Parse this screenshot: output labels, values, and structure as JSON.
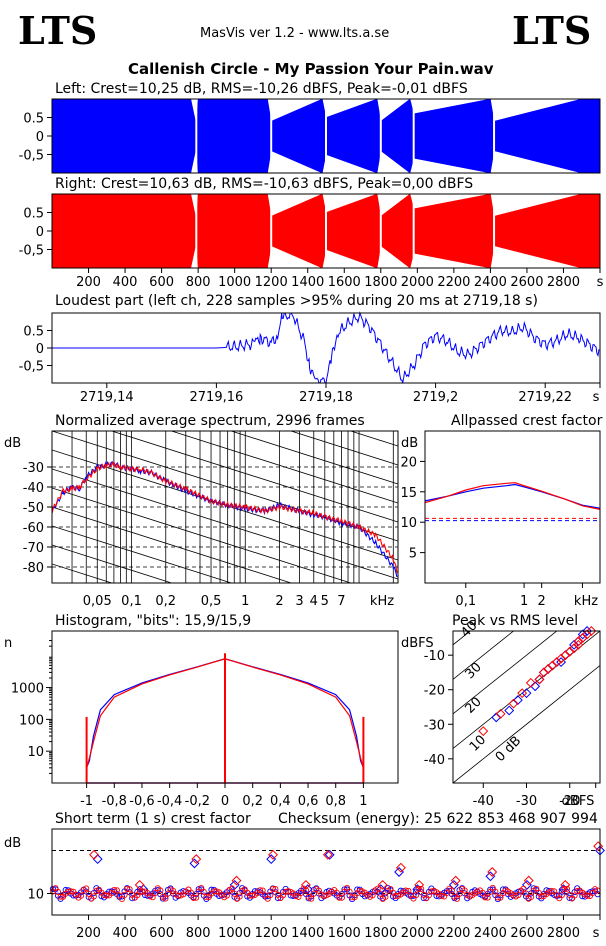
{
  "header": {
    "logo_left": "LTS",
    "logo_right": "LTS",
    "version": "MasVis ver 1.2 - www.lts.a.se",
    "file_title": "Callenish Circle - My Passion  Your Pain.wav"
  },
  "colors": {
    "left": "#0000ff",
    "right": "#ff0000",
    "grid": "#000000"
  },
  "chart_data": [
    {
      "id": "left-waveform",
      "type": "area",
      "title": "Left: Crest=10,25 dB, RMS=-10,26 dBFS, Peak=-0,01 dBFS",
      "ylim": [
        -1,
        1
      ],
      "yticks": [
        "0.5",
        "0",
        "-0,5"
      ],
      "ytick_values": [
        0.5,
        0,
        -0.5
      ],
      "xlim": [
        0,
        3000
      ],
      "series": [
        {
          "name": "Left",
          "color": "#0000ff",
          "x": [
            0,
            760,
            790,
            800,
            1000,
            1180,
            1200,
            1480,
            1500,
            1780,
            1800,
            1960,
            1980,
            2400,
            2420,
            2900,
            3000
          ],
          "min": [
            -1.0,
            -1.0,
            -0.3,
            -1.0,
            -1.0,
            -1.0,
            -0.4,
            -1.0,
            -0.5,
            -1.0,
            -0.4,
            -1.0,
            -0.6,
            -1.0,
            -0.4,
            -1.0,
            -1.0
          ],
          "max": [
            1.0,
            1.0,
            0.3,
            1.0,
            1.0,
            1.0,
            0.4,
            1.0,
            0.5,
            1.0,
            0.4,
            1.0,
            0.6,
            1.0,
            0.4,
            1.0,
            1.0
          ]
        }
      ]
    },
    {
      "id": "right-waveform",
      "type": "area",
      "title": "Right: Crest=10,63 dB, RMS=-10,63 dBFS, Peak=0,00 dBFS",
      "ylim": [
        -1,
        1
      ],
      "yticks": [
        "0.5",
        "0",
        "-0,5"
      ],
      "ytick_values": [
        0.5,
        0,
        -0.5
      ],
      "xlim": [
        0,
        3000
      ],
      "xticks": [
        "200",
        "400",
        "600",
        "800",
        "1000",
        "1200",
        "1400",
        "1600",
        "1800",
        "2000",
        "2200",
        "2400",
        "2600",
        "2800",
        "s"
      ],
      "xtick_values": [
        200,
        400,
        600,
        800,
        1000,
        1200,
        1400,
        1600,
        1800,
        2000,
        2200,
        2400,
        2600,
        2800,
        3000
      ],
      "series": [
        {
          "name": "Right",
          "color": "#ff0000",
          "x": [
            0,
            760,
            790,
            800,
            1000,
            1180,
            1200,
            1480,
            1500,
            1780,
            1800,
            1960,
            1980,
            2400,
            2420,
            2900,
            3000
          ],
          "min": [
            -1.0,
            -1.0,
            -0.3,
            -1.0,
            -1.0,
            -1.0,
            -0.4,
            -1.0,
            -0.5,
            -1.0,
            -0.4,
            -1.0,
            -0.6,
            -1.0,
            -0.4,
            -1.0,
            -1.0
          ],
          "max": [
            1.0,
            1.0,
            0.3,
            1.0,
            1.0,
            1.0,
            0.4,
            1.0,
            0.5,
            1.0,
            0.4,
            1.0,
            0.6,
            1.0,
            0.4,
            1.0,
            1.0
          ]
        }
      ]
    },
    {
      "id": "loudest-part",
      "type": "line",
      "title": "Loudest part (left  ch, 228 samples >95% during 20 ms at 2719,18 s)",
      "ylim": [
        -1,
        1
      ],
      "yticks": [
        "0.5",
        "0",
        "-0,5"
      ],
      "ytick_values": [
        0.5,
        0,
        -0.5
      ],
      "xlim": [
        2719.13,
        2719.23
      ],
      "xticks": [
        "2719,14",
        "2719,16",
        "2719,18",
        "2719,2",
        "2719,22",
        "s"
      ],
      "xtick_values": [
        2719.14,
        2719.16,
        2719.18,
        2719.2,
        2719.22,
        2719.23
      ],
      "series": [
        {
          "name": "Left",
          "color": "#0000ff",
          "x": [
            2719.13,
            2719.16,
            2719.162,
            2719.164,
            2719.166,
            2719.167,
            2719.168,
            2719.17,
            2719.171,
            2719.172,
            2719.174,
            2719.176,
            2719.177,
            2719.178,
            2719.18,
            2719.181,
            2719.182,
            2719.184,
            2719.186,
            2719.188,
            2719.19,
            2719.192,
            2719.194,
            2719.196,
            2719.198,
            2719.2,
            2719.202,
            2719.204,
            2719.206,
            2719.208,
            2719.21,
            2719.212,
            2719.214,
            2719.216,
            2719.218,
            2719.22,
            2719.222,
            2719.224,
            2719.226,
            2719.228,
            2719.23
          ],
          "y": [
            0,
            0,
            0.02,
            0.05,
            0.1,
            0.15,
            0.3,
            0.15,
            0.3,
            0.9,
            0.95,
            0.2,
            -0.5,
            -0.95,
            -0.95,
            -0.3,
            0.4,
            0.7,
            0.9,
            0.6,
            0.1,
            -0.4,
            -0.9,
            -0.5,
            0.1,
            0.35,
            0.2,
            -0.1,
            -0.2,
            0.05,
            0.3,
            0.5,
            0.45,
            0.6,
            0.3,
            0.1,
            0.2,
            0.4,
            0.3,
            0.1,
            -0.1
          ]
        }
      ]
    },
    {
      "id": "average-spectrum",
      "type": "line",
      "title": "Normalized average spectrum, 2996 frames",
      "ylabel": "dB",
      "yticks": [
        "-30",
        "-40",
        "-50",
        "-60",
        "-70",
        "-80"
      ],
      "ytick_values": [
        -30,
        -40,
        -50,
        -60,
        -70,
        -80
      ],
      "ylim": [
        -88,
        -12
      ],
      "log_x": true,
      "xlim": [
        0.02,
        22
      ],
      "xticks": [
        "0,05",
        "0,1",
        "0,2",
        "0,5",
        "1",
        "2",
        "3",
        "4",
        "5",
        "7",
        "kHz"
      ],
      "xtick_values": [
        0.05,
        0.1,
        0.2,
        0.5,
        1,
        2,
        3,
        4,
        5,
        7,
        12
      ],
      "series": [
        {
          "name": "Left",
          "color": "#0000ff",
          "x": [
            0.02,
            0.025,
            0.03,
            0.035,
            0.04,
            0.05,
            0.06,
            0.07,
            0.08,
            0.1,
            0.12,
            0.15,
            0.2,
            0.3,
            0.5,
            0.7,
            1,
            1.5,
            2,
            3,
            4,
            5,
            7,
            10,
            14,
            20,
            22
          ],
          "y": [
            -52,
            -43,
            -40,
            -41,
            -35,
            -30,
            -29,
            -28,
            -30,
            -31,
            -32,
            -33,
            -37,
            -42,
            -47,
            -49,
            -51,
            -52,
            -49,
            -52,
            -54,
            -55,
            -58,
            -60,
            -68,
            -80,
            -85
          ]
        },
        {
          "name": "Right",
          "color": "#ff0000",
          "x": [
            0.02,
            0.025,
            0.03,
            0.035,
            0.04,
            0.05,
            0.06,
            0.07,
            0.08,
            0.1,
            0.12,
            0.15,
            0.2,
            0.3,
            0.5,
            0.7,
            1,
            1.5,
            2,
            3,
            4,
            5,
            7,
            10,
            14,
            20,
            22
          ],
          "y": [
            -52,
            -42,
            -41,
            -40,
            -36,
            -31,
            -29,
            -29,
            -30,
            -31,
            -31,
            -33,
            -37,
            -41,
            -47,
            -49,
            -50,
            -52,
            -50,
            -52,
            -53,
            -55,
            -57,
            -60,
            -64,
            -76,
            -84
          ]
        }
      ]
    },
    {
      "id": "allpassed-crest",
      "type": "line",
      "title": "Allpassed crest factor",
      "ylabel": "dB",
      "yticks": [
        "20",
        "15",
        "10",
        "5"
      ],
      "ytick_values": [
        20,
        15,
        10,
        5
      ],
      "ylim": [
        0,
        25
      ],
      "log_x": true,
      "xlim": [
        0.02,
        20
      ],
      "xticks": [
        "0,1",
        "1",
        "2",
        "kHz"
      ],
      "xtick_values": [
        0.1,
        1,
        2,
        10
      ],
      "reference": [
        10.25,
        10.63
      ],
      "series": [
        {
          "name": "Left",
          "color": "#0000ff",
          "x": [
            0.02,
            0.05,
            0.1,
            0.2,
            0.5,
            0.7,
            1,
            2,
            5,
            10,
            20
          ],
          "y": [
            13.5,
            14.3,
            15.0,
            15.6,
            16.0,
            16.2,
            15.8,
            15.0,
            13.8,
            12.8,
            12.3
          ]
        },
        {
          "name": "Right",
          "color": "#ff0000",
          "x": [
            0.02,
            0.05,
            0.1,
            0.2,
            0.5,
            0.7,
            1,
            2,
            5,
            10,
            20
          ],
          "y": [
            13.2,
            14.3,
            15.3,
            16.0,
            16.4,
            16.5,
            16.0,
            15.1,
            13.8,
            12.7,
            12.1
          ]
        }
      ]
    },
    {
      "id": "histogram",
      "type": "line",
      "title": "Histogram, \"bits\": 15,9/15,9",
      "ylabel": "n",
      "yticks": [
        "1000",
        "100",
        "10"
      ],
      "ytick_values": [
        1000,
        100,
        10
      ],
      "log_y": true,
      "ylim": [
        1,
        60000
      ],
      "xlim": [
        -1.25,
        1.25
      ],
      "xticks": [
        "-1",
        "-0,8",
        "-0,6",
        "-0,4",
        "-0,2",
        "0",
        "0,2",
        "0,4",
        "0,6",
        "0,8",
        "1"
      ],
      "xtick_values": [
        -1,
        -0.8,
        -0.6,
        -0.4,
        -0.2,
        0,
        0.2,
        0.4,
        0.6,
        0.8,
        1
      ],
      "series": [
        {
          "name": "Left",
          "color": "#0000ff",
          "x": [
            -1,
            -0.98,
            -0.95,
            -0.9,
            -0.8,
            -0.6,
            -0.4,
            -0.2,
            0,
            0.2,
            0.4,
            0.6,
            0.8,
            0.9,
            0.95,
            0.98,
            1
          ],
          "y": [
            3,
            5,
            30,
            200,
            600,
            1400,
            2600,
            4500,
            8000,
            4500,
            2600,
            1400,
            600,
            200,
            30,
            5,
            3
          ]
        },
        {
          "name": "Right",
          "color": "#ff0000",
          "x": [
            -1,
            -0.98,
            -0.95,
            -0.9,
            -0.8,
            -0.6,
            -0.4,
            -0.2,
            0,
            0.2,
            0.4,
            0.6,
            0.8,
            0.9,
            0.95,
            0.98,
            1
          ],
          "y": [
            3,
            6,
            20,
            130,
            500,
            1300,
            2500,
            4400,
            8000,
            4400,
            2500,
            1300,
            500,
            130,
            20,
            6,
            3
          ]
        }
      ],
      "spikes": [
        {
          "x": -1,
          "y": 120
        },
        {
          "x": 0,
          "y": 12000
        },
        {
          "x": 1,
          "y": 120
        }
      ]
    },
    {
      "id": "peak-vs-rms",
      "type": "scatter",
      "title": "Peak vs RMS level",
      "ylabel": "dBFS",
      "yticks": [
        "-10",
        "-20",
        "-30",
        "-40"
      ],
      "ytick_values": [
        -10,
        -20,
        -30,
        -40
      ],
      "ylim": [
        -47,
        -3
      ],
      "xlim": [
        -47,
        -13
      ],
      "xticks": [
        "-40",
        "-30",
        "-20",
        "dBFS"
      ],
      "xtick_values": [
        -40,
        -30,
        -20,
        -14
      ],
      "diagonal_labels": [
        "40",
        "30",
        "20",
        "10",
        "0 dB"
      ],
      "series": [
        {
          "name": "Left",
          "color": "#0000ff",
          "x": [
            -37,
            -34,
            -32,
            -30,
            -28,
            -27,
            -26,
            -25,
            -24,
            -23,
            -22,
            -21,
            -20,
            -19,
            -19,
            -18,
            -17,
            -17,
            -16
          ],
          "y": [
            -28,
            -26,
            -23,
            -21,
            -19,
            -17,
            -15,
            -14,
            -13,
            -12,
            -12,
            -10,
            -9,
            -8,
            -7,
            -6,
            -5,
            -4,
            -3
          ]
        },
        {
          "name": "Right",
          "color": "#ff0000",
          "x": [
            -40,
            -36,
            -33,
            -31,
            -29,
            -27,
            -26,
            -25,
            -24,
            -23,
            -22,
            -21,
            -20,
            -19,
            -18,
            -18,
            -17,
            -16,
            -15
          ],
          "y": [
            -32,
            -27,
            -24,
            -21,
            -18,
            -17,
            -15,
            -14,
            -13,
            -12,
            -11,
            -10,
            -9,
            -8,
            -7,
            -6,
            -5,
            -4,
            -3
          ]
        }
      ]
    },
    {
      "id": "short-term-crest",
      "type": "scatter",
      "title": "Short term (1 s) crest factor",
      "checksum": "Checksum (energy):  25 622 853 468 907 994",
      "ylabel": "dB",
      "yticks": [
        "10"
      ],
      "ytick_values": [
        10
      ],
      "ylim": [
        5,
        25
      ],
      "xlim": [
        0,
        3000
      ],
      "xticks": [
        "200",
        "400",
        "600",
        "800",
        "1000",
        "1200",
        "1400",
        "1600",
        "1800",
        "2000",
        "2200",
        "2400",
        "2600",
        "2800",
        "s"
      ],
      "xtick_values": [
        200,
        400,
        600,
        800,
        1000,
        1200,
        1400,
        1600,
        1800,
        2000,
        2200,
        2400,
        2600,
        2800,
        3000
      ],
      "reference": [
        10,
        20
      ],
      "series": [
        {
          "name": "Left",
          "color": "#0000ff",
          "x": [
            250,
            500,
            780,
            1000,
            1200,
            1400,
            1520,
            1800,
            1900,
            2000,
            2200,
            2400,
            2600,
            2800,
            3000
          ],
          "y": [
            18,
            11,
            17,
            12,
            18,
            11,
            19,
            11,
            15,
            11,
            12,
            14,
            12,
            11,
            20
          ]
        },
        {
          "name": "Right",
          "color": "#ff0000",
          "x": [
            230,
            480,
            790,
            1010,
            1210,
            1390,
            1510,
            1810,
            1910,
            2010,
            2210,
            2410,
            2610,
            2810,
            2990
          ],
          "y": [
            19,
            12,
            18,
            13,
            19,
            12,
            19,
            12,
            16,
            12,
            13,
            15,
            13,
            12,
            21
          ]
        }
      ]
    }
  ]
}
